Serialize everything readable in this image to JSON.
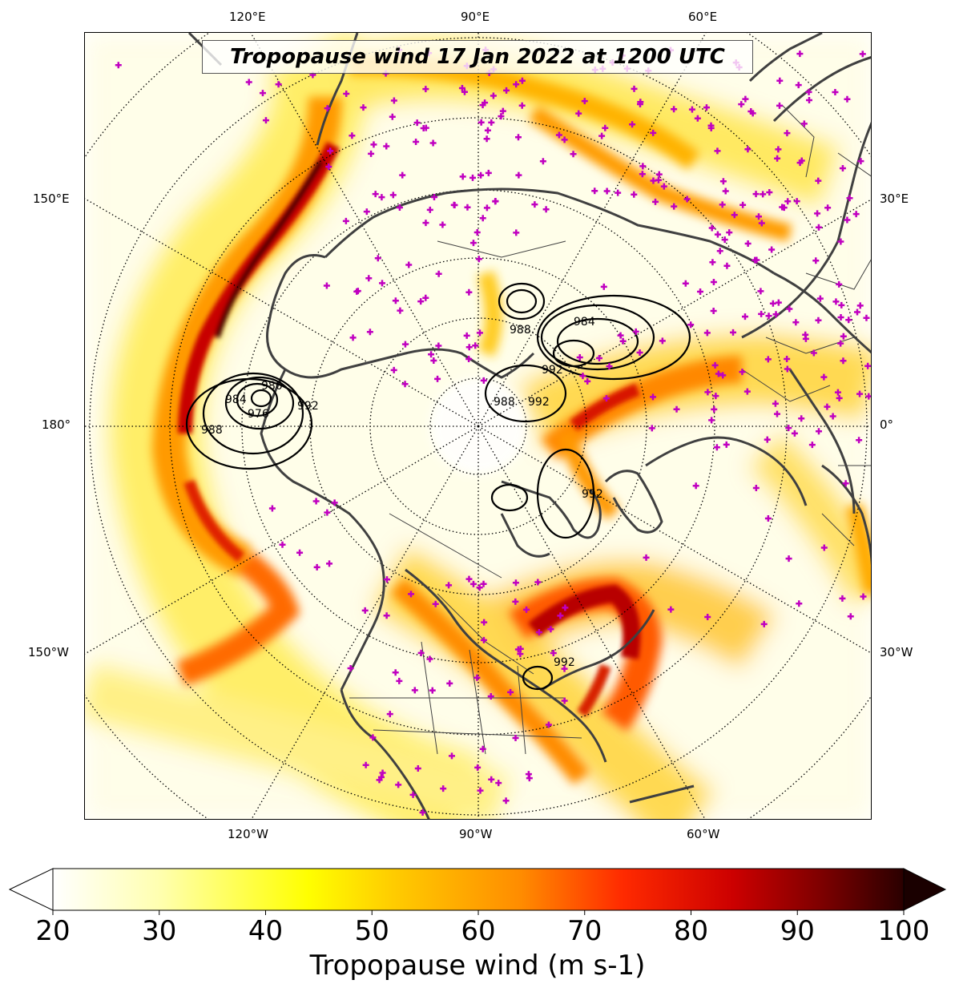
{
  "title": "Tropopause wind 17 Jan 2022 at 1200 UTC",
  "longitude_labels": {
    "top": [
      "120°E",
      "90°E",
      "60°E"
    ],
    "left": [
      "150°E",
      "180°",
      "150°W"
    ],
    "right": [
      "30°E",
      "0°",
      "30°W"
    ],
    "bottom": [
      "120°W",
      "90°W",
      "60°W"
    ]
  },
  "colorbar": {
    "label": "Tropopause wind (m s-1)",
    "ticks": [
      "20",
      "30",
      "40",
      "50",
      "60",
      "70",
      "80",
      "90",
      "100"
    ],
    "min": 20,
    "max": 100,
    "extend": "both",
    "colormap": [
      "#ffffff",
      "#ffffb0",
      "#ffff00",
      "#ffcc00",
      "#ff8c00",
      "#ff2a00",
      "#cc0000",
      "#800000",
      "#2a0000"
    ]
  },
  "pressure_contour_labels": [
    "976",
    "980",
    "984",
    "988",
    "992",
    "984",
    "988",
    "992",
    "988",
    "992",
    "992",
    "992"
  ],
  "station_marker_color": "#c000c0",
  "coastline_color": "#404040"
}
